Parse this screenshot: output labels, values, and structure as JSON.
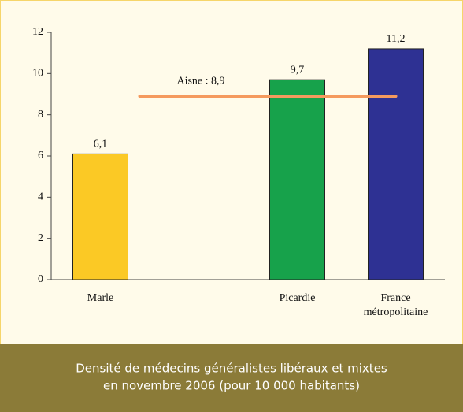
{
  "chart_data": {
    "type": "bar",
    "title": [
      "Densité de médecins généralistes libéraux et mixtes",
      "en novembre 2006 (pour 10 000 habitants)"
    ],
    "categories": [
      "Marle",
      null,
      "Picardie",
      "France métropolitaine"
    ],
    "values": [
      6.1,
      null,
      9.7,
      11.2
    ],
    "value_labels": [
      "6,1",
      null,
      "9,7",
      "11,2"
    ],
    "colors": [
      "#fbc925",
      null,
      "#17a24b",
      "#2e3193"
    ],
    "reference_line": {
      "value": 8.9,
      "label": "Aisne : 8,9",
      "color": "#f59a5e"
    },
    "ylim": [
      0,
      12
    ],
    "yticks": [
      0,
      2,
      4,
      6,
      8,
      10,
      12
    ],
    "grid": false
  }
}
